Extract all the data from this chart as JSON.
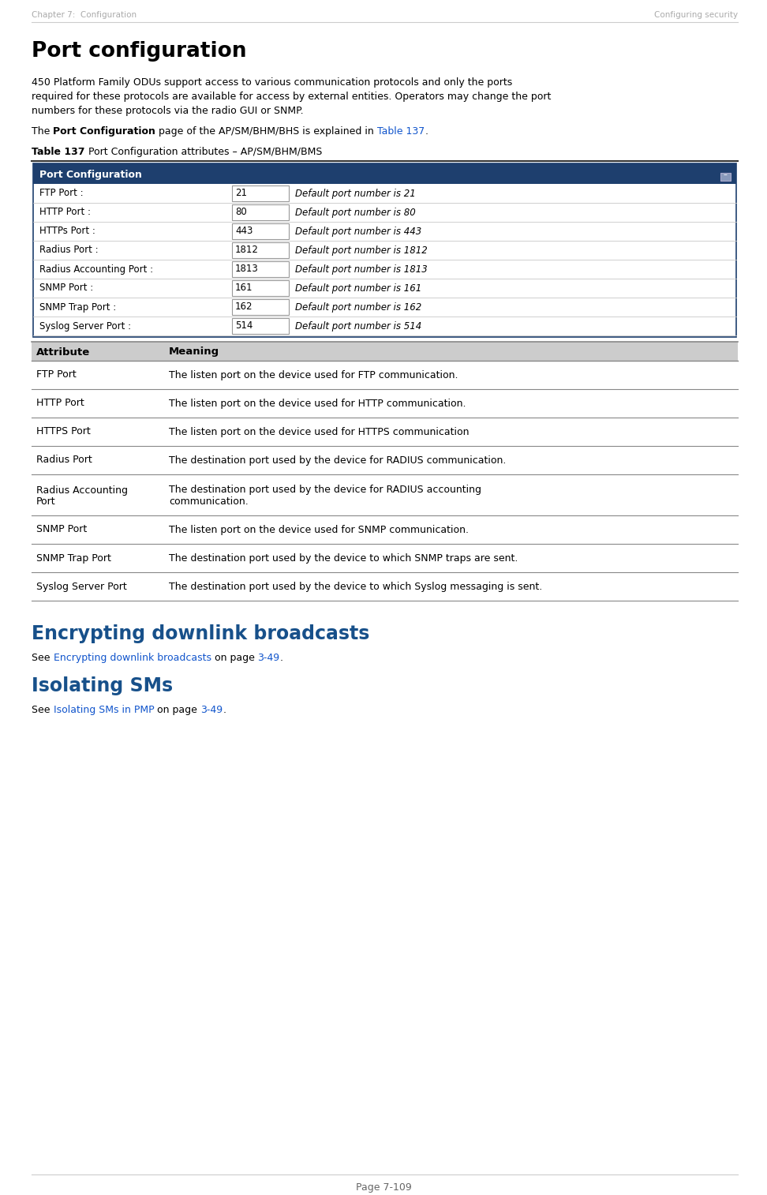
{
  "header_left": "Chapter 7:  Configuration",
  "header_right": "Configuring security",
  "page_title": "Port configuration",
  "intro_line1": "450 Platform Family ODUs support access to various communication protocols and only the ports",
  "intro_line2": "required for these protocols are available for access by external entities. Operators may change the port",
  "intro_line3": "numbers for these protocols via the radio GUI or SNMP.",
  "gui_title": "Port Configuration",
  "gui_rows": [
    {
      "label": "FTP Port :",
      "value": "21",
      "desc": "Default port number is 21"
    },
    {
      "label": "HTTP Port :",
      "value": "80",
      "desc": "Default port number is 80"
    },
    {
      "label": "HTTPs Port :",
      "value": "443",
      "desc": "Default port number is 443"
    },
    {
      "label": "Radius Port :",
      "value": "1812",
      "desc": "Default port number is 1812"
    },
    {
      "label": "Radius Accounting Port :",
      "value": "1813",
      "desc": "Default port number is 1813"
    },
    {
      "label": "SNMP Port :",
      "value": "161",
      "desc": "Default port number is 161"
    },
    {
      "label": "SNMP Trap Port :",
      "value": "162",
      "desc": "Default port number is 162"
    },
    {
      "label": "Syslog Server Port :",
      "value": "514",
      "desc": "Default port number is 514"
    }
  ],
  "attr_table_header": [
    "Attribute",
    "Meaning"
  ],
  "attr_table_rows": [
    {
      "attr": "FTP Port",
      "meaning": "The listen port on the device used for FTP communication."
    },
    {
      "attr": "HTTP Port",
      "meaning": "The listen port on the device used for HTTP communication."
    },
    {
      "attr": "HTTPS Port",
      "meaning": "The listen port on the device used for HTTPS communication"
    },
    {
      "attr": "Radius Port",
      "meaning": "The destination port used by the device for RADIUS communication."
    },
    {
      "attr": "Radius Accounting\nPort",
      "meaning": "The destination port used by the device for RADIUS accounting\ncommunication."
    },
    {
      "attr": "SNMP Port",
      "meaning": "The listen port on the device used for SNMP communication."
    },
    {
      "attr": "SNMP Trap Port",
      "meaning": "The destination port used by the device to which SNMP traps are sent."
    },
    {
      "attr": "Syslog Server Port",
      "meaning": "The destination port used by the device to which Syslog messaging is sent."
    }
  ],
  "section2_title": "Encrypting downlink broadcasts",
  "section2_see": "See ",
  "section2_link": "Encrypting downlink broadcasts",
  "section2_on": " on page ",
  "section2_page": "3-49",
  "section2_dot": ".",
  "section3_title": "Isolating SMs",
  "section3_see": "See ",
  "section3_link": "Isolating SMs in PMP",
  "section3_on": " on page ",
  "section3_page": "3-49",
  "section3_dot": ".",
  "footer_text": "Page 7-109",
  "bg_color": "#ffffff",
  "header_color": "#aaaaaa",
  "title_color": "#000000",
  "body_color": "#000000",
  "link_color": "#1155CC",
  "gui_header_bg": "#1e3f6e",
  "gui_header_text": "#ffffff",
  "gui_border_color": "#1e3f6e",
  "attr_header_bg": "#cccccc",
  "section_title_color": "#17508a",
  "line_color": "#888888",
  "caption_line_color": "#333333"
}
